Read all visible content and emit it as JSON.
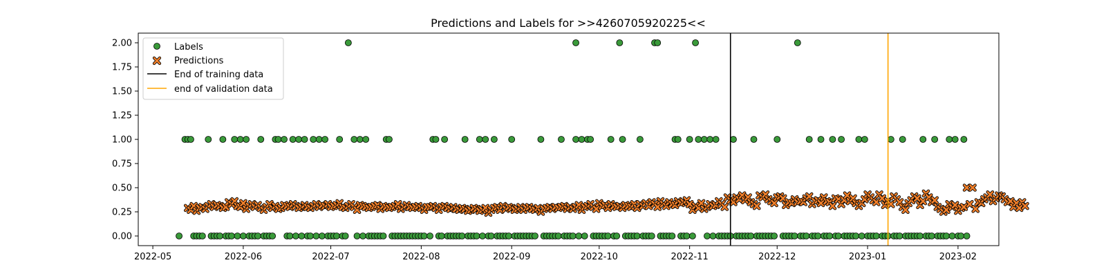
{
  "chart_data": {
    "type": "scatter",
    "title": "Predictions and Labels for >>4260705920225<<",
    "xlabel": "",
    "ylabel": "",
    "x_type": "date",
    "xlim": [
      "2022-04-26",
      "2023-02-15"
    ],
    "ylim": [
      -0.1,
      2.1
    ],
    "xticks": [
      "2022-05",
      "2022-06",
      "2022-07",
      "2022-08",
      "2022-09",
      "2022-10",
      "2022-11",
      "2022-12",
      "2023-01",
      "2023-02"
    ],
    "yticks": [
      "0.00",
      "0.25",
      "0.50",
      "0.75",
      "1.00",
      "1.25",
      "1.50",
      "1.75",
      "2.00"
    ],
    "legend_position": "upper-left",
    "colors": {
      "labels": "#3a9a3a",
      "predictions": "#f07f2a",
      "training_line": "#000000",
      "validation_line": "#ffa500"
    },
    "vlines": [
      {
        "name": "End of training data",
        "x": "2022-11-15",
        "color": "#000000"
      },
      {
        "name": "end of validation data",
        "x": "2023-01-08",
        "color": "#ffa500"
      }
    ],
    "labels_series": {
      "name": "Labels",
      "marker": "circle",
      "start": "2022-05-10",
      "values": [
        0,
        1,
        1,
        1,
        0,
        1,
        0,
        0,
        0,
        0,
        0,
        0,
        0,
        0,
        0,
        0,
        0,
        0,
        0,
        0,
        0,
        0,
        0,
        0,
        0,
        0,
        0,
        0,
        0,
        0,
        0,
        0,
        0,
        0,
        0,
        0,
        0,
        0,
        0,
        0,
        0,
        0,
        0,
        0,
        0,
        0,
        0,
        0,
        0,
        0,
        0,
        0,
        0,
        0,
        0,
        0,
        0,
        2,
        0,
        0,
        0,
        0,
        0,
        0,
        0,
        0,
        0,
        0,
        0,
        0,
        0,
        0,
        0,
        0,
        0,
        0,
        0,
        0,
        0,
        0,
        0,
        0,
        0,
        0,
        0,
        0,
        0,
        0,
        0,
        0,
        0,
        0,
        0,
        0,
        0,
        0,
        0,
        0,
        0,
        0,
        0,
        0,
        0,
        0,
        0,
        0,
        0,
        0,
        0,
        0,
        0,
        0,
        0,
        0,
        0,
        0,
        0,
        0,
        0,
        0,
        0,
        0,
        0,
        0,
        0,
        0,
        0,
        0,
        0,
        0,
        0,
        0,
        0,
        0,
        0,
        0,
        0,
        0,
        0,
        0,
        0,
        2,
        0,
        0,
        0,
        0,
        0,
        0,
        0,
        0,
        0,
        0,
        0,
        0,
        0,
        0,
        0,
        0,
        0,
        0,
        0,
        0,
        0,
        0,
        0,
        0,
        0,
        0,
        0,
        0,
        0,
        0,
        0,
        0,
        2,
        0,
        0,
        0,
        0,
        0,
        0,
        0,
        0,
        0,
        0,
        0,
        0,
        0,
        0,
        0,
        0,
        0,
        0,
        0,
        0,
        0,
        0,
        0,
        0,
        0,
        0,
        0,
        0,
        0,
        0,
        0,
        0,
        0,
        0,
        0,
        0,
        0,
        0,
        0,
        0,
        0,
        0,
        0,
        0,
        0,
        0,
        0,
        0,
        0,
        0,
        0,
        0,
        0,
        0,
        0,
        0,
        0,
        0,
        0,
        0,
        0,
        0,
        0,
        0,
        0,
        0,
        0,
        0,
        0,
        0,
        0,
        0,
        0,
        0,
        0,
        0,
        0,
        0,
        0,
        0,
        0,
        0,
        0,
        0,
        0,
        0,
        0,
        0,
        0,
        0,
        0,
        0,
        0,
        0,
        0,
        0,
        0,
        0,
        0,
        0,
        0,
        0,
        0,
        0,
        0,
        0,
        0
      ],
      "ones": [
        "2022-05-12",
        "2022-05-13",
        "2022-05-14",
        "2022-05-20",
        "2022-05-25",
        "2022-05-29",
        "2022-05-31",
        "2022-06-02",
        "2022-06-07",
        "2022-06-12",
        "2022-06-13",
        "2022-06-15",
        "2022-06-18",
        "2022-06-20",
        "2022-06-22",
        "2022-06-25",
        "2022-06-27",
        "2022-06-29",
        "2022-07-04",
        "2022-07-09",
        "2022-07-11",
        "2022-07-13",
        "2022-07-20",
        "2022-07-21",
        "2022-08-05",
        "2022-08-06",
        "2022-08-09",
        "2022-08-16",
        "2022-08-21",
        "2022-08-23",
        "2022-08-26",
        "2022-09-01",
        "2022-09-11",
        "2022-09-18",
        "2022-09-23",
        "2022-09-25",
        "2022-09-27",
        "2022-09-28",
        "2022-10-05",
        "2022-10-09",
        "2022-10-15",
        "2022-10-27",
        "2022-10-28",
        "2022-11-01",
        "2022-11-04",
        "2022-11-06",
        "2022-11-08",
        "2022-11-10",
        "2022-11-16",
        "2022-11-23",
        "2022-12-01",
        "2022-12-12",
        "2022-12-16",
        "2022-12-20",
        "2022-12-23",
        "2022-12-29",
        "2022-12-31",
        "2023-01-09",
        "2023-01-13",
        "2023-01-20",
        "2023-01-24",
        "2023-01-29",
        "2023-01-31",
        "2023-02-03"
      ],
      "twos": [
        "2022-07-07",
        "2022-09-23",
        "2022-10-08",
        "2022-10-20",
        "2022-10-21",
        "2022-11-03",
        "2022-12-08"
      ],
      "zero_range": [
        "2022-05-10",
        "2023-02-04"
      ]
    },
    "predictions_series": {
      "name": "Predictions",
      "marker": "x",
      "start": "2022-05-13",
      "values": [
        0.29,
        0.27,
        0.31,
        0.26,
        0.29,
        0.3,
        0.28,
        0.31,
        0.33,
        0.3,
        0.32,
        0.31,
        0.29,
        0.3,
        0.35,
        0.33,
        0.36,
        0.31,
        0.3,
        0.34,
        0.28,
        0.31,
        0.33,
        0.3,
        0.32,
        0.29,
        0.27,
        0.3,
        0.33,
        0.29,
        0.31,
        0.28,
        0.29,
        0.32,
        0.31,
        0.3,
        0.33,
        0.31,
        0.29,
        0.3,
        0.32,
        0.3,
        0.29,
        0.31,
        0.33,
        0.3,
        0.32,
        0.31,
        0.33,
        0.3,
        0.31,
        0.32,
        0.34,
        0.3,
        0.29,
        0.31,
        0.33,
        0.3,
        0.27,
        0.32,
        0.31,
        0.3,
        0.29,
        0.3,
        0.31,
        0.32,
        0.28,
        0.31,
        0.3,
        0.29,
        0.3,
        0.31,
        0.33,
        0.28,
        0.3,
        0.32,
        0.3,
        0.29,
        0.3,
        0.31,
        0.29,
        0.27,
        0.3,
        0.3,
        0.31,
        0.29,
        0.27,
        0.3,
        0.31,
        0.29,
        0.28,
        0.3,
        0.28,
        0.27,
        0.29,
        0.28,
        0.26,
        0.27,
        0.29,
        0.28,
        0.26,
        0.27,
        0.29,
        0.24,
        0.27,
        0.29,
        0.3,
        0.27,
        0.31,
        0.28,
        0.3,
        0.29,
        0.27,
        0.28,
        0.3,
        0.27,
        0.29,
        0.3,
        0.28,
        0.27,
        0.29,
        0.25,
        0.28,
        0.29,
        0.3,
        0.28,
        0.3,
        0.29,
        0.3,
        0.31,
        0.28,
        0.3,
        0.28,
        0.3,
        0.32,
        0.27,
        0.3,
        0.31,
        0.33,
        0.3,
        0.28,
        0.34,
        0.31,
        0.32,
        0.29,
        0.33,
        0.31,
        0.3,
        0.31,
        0.29,
        0.32,
        0.31,
        0.3,
        0.33,
        0.29,
        0.33,
        0.31,
        0.34,
        0.31,
        0.35,
        0.33,
        0.3,
        0.36,
        0.33,
        0.31,
        0.35,
        0.33,
        0.32,
        0.36,
        0.34,
        0.35,
        0.37,
        0.33,
        0.27,
        0.31,
        0.29,
        0.34,
        0.28,
        0.3,
        0.33,
        0.31,
        0.32,
        0.36,
        0.33,
        0.3,
        0.4,
        0.37,
        0.35,
        0.4,
        0.38,
        0.42,
        0.37,
        0.4,
        0.35,
        0.33,
        0.31,
        0.42,
        0.4,
        0.43,
        0.38,
        0.36,
        0.34,
        0.4,
        0.41,
        0.39,
        0.32,
        0.35,
        0.34,
        0.38,
        0.35,
        0.36,
        0.35,
        0.39,
        0.41,
        0.33,
        0.36,
        0.37,
        0.34,
        0.4,
        0.36,
        0.35,
        0.31,
        0.39,
        0.38,
        0.33,
        0.37,
        0.42,
        0.36,
        0.39,
        0.34,
        0.31,
        0.34,
        0.38,
        0.43,
        0.4,
        0.37,
        0.35,
        0.43,
        0.39,
        0.32,
        0.36,
        0.33,
        0.41,
        0.38,
        0.35,
        0.3,
        0.27,
        0.34,
        0.37,
        0.41,
        0.39,
        0.32,
        0.36,
        0.44,
        0.4,
        0.35,
        0.37,
        0.3,
        0.28,
        0.25,
        0.27,
        0.33,
        0.3,
        0.32,
        0.26,
        0.29,
        0.3,
        0.5,
        0.33,
        0.5,
        0.28,
        0.35,
        0.34,
        0.38,
        0.4,
        0.43,
        0.36,
        0.39,
        0.42,
        0.41,
        0.38,
        0.35,
        0.36,
        0.3,
        0.34,
        0.29,
        0.35,
        0.31
      ]
    }
  }
}
